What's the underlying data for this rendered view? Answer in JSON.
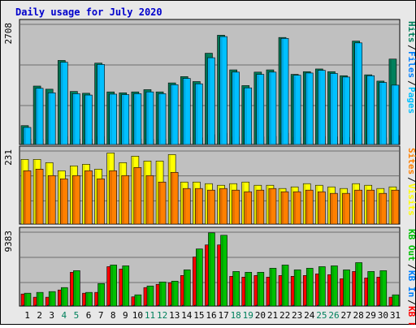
{
  "title": "Daily usage for July 2020",
  "colors": {
    "page_bg": "#e8e8e8",
    "panel_bg": "#c0c0c0",
    "title": "#0000cc",
    "hits": "#00805c",
    "files": "#0080ff",
    "pages": "#00c0ff",
    "visits": "#ffff00",
    "sites": "#ff8000",
    "kb_f": "#ff0000",
    "kb_in": "#0080ff",
    "kb_out": "#00c000",
    "weekday_label": "#000000",
    "weekend_label": "#00805c"
  },
  "chart_data": [
    {
      "type": "bar",
      "panel": "hits-files-pages",
      "ymax_label": "2708",
      "ylim": [
        0,
        2708
      ],
      "legend": [
        "Pages",
        "/",
        "Files",
        "/",
        "Hits"
      ],
      "series": [
        {
          "name": "Hits",
          "values": [
            420,
            1300,
            1230,
            1870,
            1180,
            1140,
            1810,
            1170,
            1150,
            1170,
            1220,
            1170,
            1370,
            1510,
            1400,
            2030,
            2430,
            1660,
            1310,
            1610,
            1660,
            2380,
            1560,
            1620,
            1680,
            1620,
            1530,
            2300,
            1550,
            1410,
            1900
          ]
        },
        {
          "name": "Files",
          "values": [
            120,
            120,
            120,
            180,
            120,
            120,
            180,
            120,
            120,
            120,
            120,
            120,
            140,
            160,
            150,
            220,
            250,
            170,
            140,
            170,
            180,
            250,
            160,
            170,
            180,
            170,
            160,
            240,
            160,
            150,
            200
          ]
        },
        {
          "name": "Pages",
          "values": [
            380,
            1250,
            1150,
            1830,
            1130,
            1100,
            1780,
            1120,
            1110,
            1130,
            1170,
            1130,
            1330,
            1470,
            1350,
            1930,
            2400,
            1610,
            1260,
            1560,
            1610,
            2360,
            1540,
            1590,
            1650,
            1580,
            1500,
            2260,
            1530,
            1380,
            1320
          ]
        }
      ]
    },
    {
      "type": "bar",
      "panel": "visits-sites",
      "ymax_label": "231",
      "ylim": [
        0,
        231
      ],
      "legend": [
        "Visits",
        "/",
        "Sites"
      ],
      "series": [
        {
          "name": "Visits",
          "values": [
            200,
            200,
            190,
            165,
            180,
            185,
            170,
            220,
            190,
            210,
            195,
            195,
            215,
            130,
            130,
            125,
            120,
            125,
            130,
            120,
            120,
            110,
            115,
            125,
            120,
            115,
            110,
            125,
            120,
            110,
            115
          ]
        },
        {
          "name": "Sites",
          "values": [
            165,
            170,
            150,
            140,
            150,
            165,
            140,
            165,
            150,
            175,
            150,
            130,
            160,
            110,
            110,
            105,
            110,
            105,
            100,
            105,
            110,
            100,
            100,
            105,
            100,
            95,
            95,
            105,
            105,
            95,
            105
          ]
        }
      ]
    },
    {
      "type": "bar",
      "panel": "kbytes",
      "ymax_label": "9383",
      "ylim": [
        0,
        9383
      ],
      "legend": [
        "KB F",
        "/",
        "KB In",
        "/",
        "KB Out"
      ],
      "series": [
        {
          "name": "KB F",
          "values": [
            1500,
            1100,
            1100,
            2000,
            4200,
            1600,
            1700,
            4900,
            4600,
            1150,
            2300,
            2700,
            2900,
            3800,
            6100,
            7600,
            7600,
            3700,
            3600,
            3800,
            3600,
            3800,
            3700,
            3800,
            4000,
            3900,
            3400,
            4300,
            3500,
            3600,
            1100
          ]
        },
        {
          "name": "KB In",
          "values": [
            100,
            100,
            100,
            100,
            100,
            100,
            100,
            100,
            100,
            100,
            100,
            100,
            100,
            100,
            100,
            100,
            100,
            100,
            100,
            100,
            100,
            100,
            100,
            100,
            100,
            100,
            100,
            100,
            100,
            100,
            100
          ]
        },
        {
          "name": "KB Out",
          "values": [
            1600,
            1700,
            1800,
            2300,
            4400,
            1700,
            2800,
            5100,
            5000,
            1400,
            2500,
            3000,
            3100,
            4500,
            7100,
            9100,
            8800,
            4300,
            4200,
            4200,
            4700,
            5100,
            4500,
            4700,
            4900,
            5000,
            4500,
            5400,
            4300,
            4400,
            1400
          ]
        }
      ]
    }
  ],
  "x_labels": [
    "1",
    "2",
    "3",
    "4",
    "5",
    "6",
    "7",
    "8",
    "9",
    "10",
    "11",
    "12",
    "13",
    "14",
    "15",
    "16",
    "17",
    "18",
    "19",
    "20",
    "21",
    "22",
    "23",
    "24",
    "25",
    "26",
    "27",
    "28",
    "29",
    "30",
    "31"
  ],
  "weekend_days": [
    4,
    5,
    11,
    12,
    18,
    19,
    25,
    26
  ]
}
